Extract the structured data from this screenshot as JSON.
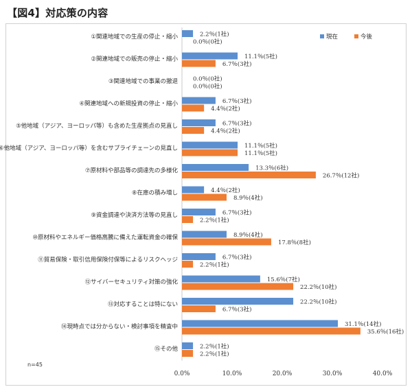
{
  "title": "【図4】対応策の内容",
  "chart_data": {
    "type": "bar",
    "orientation": "horizontal",
    "title": "【図4】対応策の内容",
    "xlim": [
      0,
      40
    ],
    "ticks": [
      0,
      10,
      20,
      30,
      40
    ],
    "tick_labels": [
      "0.0%",
      "10.0%",
      "20.0%",
      "30.0%",
      "40.0%"
    ],
    "note": "n=45",
    "legend_position": "top-right",
    "categories": [
      "①関連地域での生産の停止・縮小",
      "②関連地域での販売の停止・縮小",
      "③関連地域での事業の撤退",
      "④関連地域への新規投資の停止・縮小",
      "⑤他地域（アジア、ヨーロッパ等）も含めた生産拠点の見直し",
      "⑥他地域（アジア、ヨーロッパ等）を含むサプライチェーンの見直し",
      "⑦原材料や部品等の調達先の多様化",
      "⑧在庫の積み増し",
      "⑨資金調達や決済方法等の見直し",
      "⑩原材料やエネルギー価格高騰に備えた運転資金の確保",
      "⑪貿易保険・取引信用保険付保等によるリスクヘッジ",
      "⑫サイバーセキュリティ対策の強化",
      "⑬対応することは特にない",
      "⑭現時点では分からない・検討事項を精査中",
      "⑮その他"
    ],
    "series": [
      {
        "name": "現在",
        "color": "#5b8fd0",
        "values": [
          2.2,
          11.1,
          0.0,
          6.7,
          6.7,
          11.1,
          13.3,
          4.4,
          6.7,
          8.9,
          6.7,
          15.6,
          22.2,
          31.1,
          2.2
        ],
        "labels": [
          "2.2％(1社)",
          "11.1％(5社)",
          "0.0％(0社)",
          "6.7％(3社)",
          "6.7％(3社)",
          "11.1％(5社)",
          "13.3％(6社)",
          "4.4％(2社)",
          "6.7％(3社)",
          "8.9％(4社)",
          "6.7％(3社)",
          "15.6％(7社)",
          "22.2％(10社)",
          "31.1％(14社)",
          "2.2％(1社)"
        ]
      },
      {
        "name": "今後",
        "color": "#ef7d32",
        "values": [
          0.0,
          6.7,
          0.0,
          4.4,
          4.4,
          11.1,
          26.7,
          8.9,
          2.2,
          17.8,
          2.2,
          22.2,
          6.7,
          35.6,
          2.2
        ],
        "labels": [
          "0.0％(0社)",
          "6.7％(3社)",
          "0.0％(0社)",
          "4.4％(2社)",
          "4.4％(2社)",
          "11.1％(5社)",
          "26.7％(12社)",
          "8.9％(4社)",
          "2.2％(1社)",
          "17.8％(8社)",
          "2.2％(1社)",
          "22.2％(10社)",
          "6.7％(3社)",
          "35.6％(16社)",
          "2.2％(1社)"
        ]
      }
    ]
  }
}
